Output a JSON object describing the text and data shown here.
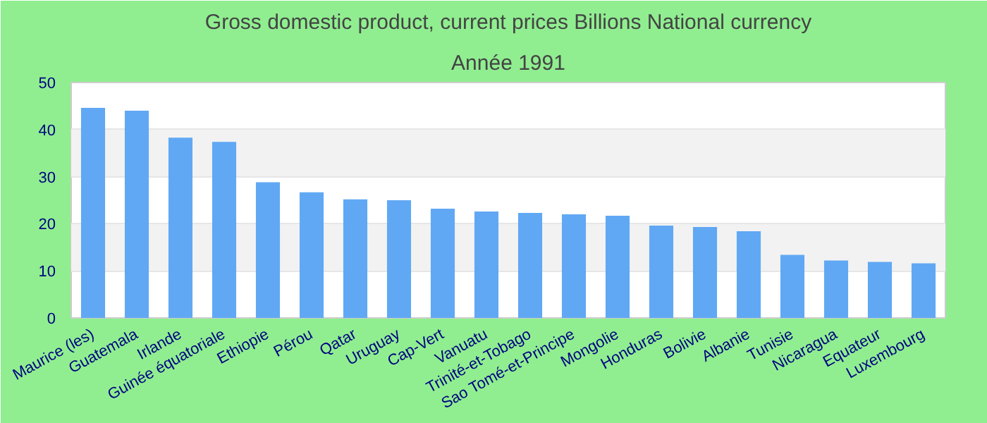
{
  "chart_data": {
    "type": "bar",
    "title": "Gross domestic product, current prices Billions National currency",
    "subtitle": "Année 1991",
    "categories": [
      "Maurice (les)",
      "Guatemala",
      "Irlande",
      "Guinée équatoriale",
      "Ethiopie",
      "Pérou",
      "Qatar",
      "Uruguay",
      "Cap-Vert",
      "Vanuatu",
      "Trinité-et-Tobago",
      "Sao Tomé-et-Principe",
      "Mongolie",
      "Honduras",
      "Bolivie",
      "Albanie",
      "Tunisie",
      "Nicaragua",
      "Equateur",
      "Luxembourg"
    ],
    "values": [
      44.6,
      44.0,
      38.3,
      37.4,
      28.8,
      26.7,
      25.2,
      25.0,
      23.2,
      22.6,
      22.3,
      22.0,
      21.7,
      19.6,
      19.3,
      18.4,
      13.4,
      12.2,
      11.9,
      11.6
    ],
    "color": "#60a8f4",
    "ylim": [
      0,
      50
    ],
    "yticks": [
      0,
      10,
      20,
      30,
      40,
      50
    ],
    "grid": "y"
  }
}
